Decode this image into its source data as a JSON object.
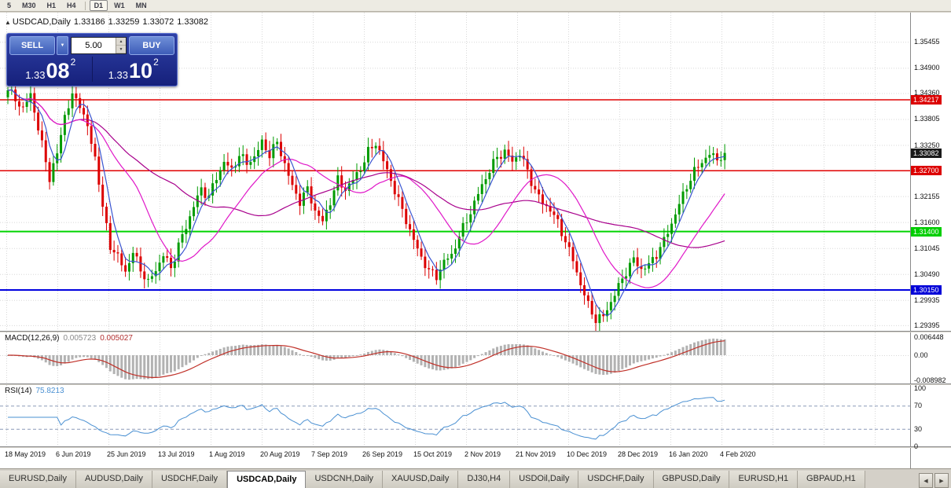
{
  "toolbar": {
    "periods": [
      "5",
      "M30",
      "H1",
      "H4",
      "D1",
      "W1",
      "MN"
    ],
    "active_period": "D1"
  },
  "icons": {
    "chart_marker": "▲",
    "sell_dropdown": "▼",
    "volume_up": "▲",
    "volume_down": "▼",
    "tab_scroll_left": "◀",
    "tab_scroll_right": "▶"
  },
  "chart": {
    "info": {
      "symbol_period": "USDCAD,Daily",
      "open": "1.33186",
      "high": "1.33259",
      "low": "1.33072",
      "close": "1.33082"
    },
    "trade_panel": {
      "sell_label": "SELL",
      "buy_label": "BUY",
      "volume": "5.00",
      "sell_price_small": "1.33",
      "sell_price_big": "08",
      "sell_price_sup": "2",
      "buy_price_small": "1.33",
      "buy_price_big": "10",
      "buy_price_sup": "2"
    },
    "price_axis": {
      "labels": [
        {
          "text": "1.35455",
          "value": 1.35455
        },
        {
          "text": "1.34900",
          "value": 1.349
        },
        {
          "text": "1.34360",
          "value": 1.3436
        },
        {
          "text": "1.33805",
          "value": 1.33805
        },
        {
          "text": "1.33250",
          "value": 1.3325
        },
        {
          "text": "1.32155",
          "value": 1.32155
        },
        {
          "text": "1.31600",
          "value": 1.316
        },
        {
          "text": "1.31045",
          "value": 1.31045
        },
        {
          "text": "1.30490",
          "value": 1.3049
        },
        {
          "text": "1.29935",
          "value": 1.29935
        },
        {
          "text": "1.29395",
          "value": 1.29395
        }
      ],
      "badges": [
        {
          "text": "1.34217",
          "value": 1.34217,
          "color": "#dc0000",
          "text_color": "#ffffff"
        },
        {
          "text": "1.33082",
          "value": 1.33082,
          "color": "#1a1a1a",
          "text_color": "#ffffff"
        },
        {
          "text": "1.32700",
          "value": 1.327,
          "color": "#dc0000",
          "text_color": "#ffffff"
        },
        {
          "text": "1.31400",
          "value": 1.314,
          "color": "#00ce00",
          "text_color": "#ffffff"
        },
        {
          "text": "1.30150",
          "value": 1.3015,
          "color": "#0000d8",
          "text_color": "#ffffff"
        }
      ]
    },
    "hlines": [
      {
        "value": 1.34217,
        "color": "#e00000",
        "width": 1.5
      },
      {
        "value": 1.327,
        "color": "#e00000",
        "width": 1.5
      },
      {
        "value": 1.314,
        "color": "#00d400",
        "width": 2
      },
      {
        "value": 1.3015,
        "color": "#0000e0",
        "width": 2
      }
    ],
    "date_axis": [
      "18 May 2019",
      "6 Jun 2019",
      "25 Jun 2019",
      "13 Jul 2019",
      "1 Aug 2019",
      "20 Aug 2019",
      "7 Sep 2019",
      "26 Sep 2019",
      "15 Oct 2019",
      "2 Nov 2019",
      "21 Nov 2019",
      "10 Dec 2019",
      "28 Dec 2019",
      "16 Jan 2020",
      "4 Feb 2020"
    ]
  },
  "macd": {
    "label": "MACD(12,26,9)",
    "value_main": "0.005723",
    "value_signal": "0.005027",
    "axis_labels": [
      {
        "text": "0.006448",
        "value": 0.006448
      },
      {
        "text": "0.00",
        "value": 0
      },
      {
        "text": "-0.008982",
        "value": -0.008982
      }
    ]
  },
  "rsi": {
    "label": "RSI(14)",
    "value": "75.8213",
    "levels": [
      70,
      30
    ],
    "axis_labels": [
      {
        "text": "100",
        "value": 100
      },
      {
        "text": "70",
        "value": 70
      },
      {
        "text": "30",
        "value": 30
      },
      {
        "text": "0",
        "value": 0
      }
    ]
  },
  "tabs": {
    "items": [
      "EURUSD,Daily",
      "AUDUSD,Daily",
      "USDCHF,Daily",
      "USDCAD,Daily",
      "USDCNH,Daily",
      "XAUUSD,Daily",
      "DJ30,H4",
      "USDOil,Daily",
      "USDCHF,Daily",
      "GBPUSD,Daily",
      "EURUSD,H1",
      "GBPAUD,H1"
    ],
    "active": "USDCAD,Daily"
  },
  "chart_data": {
    "type": "candlestick",
    "symbol": "USDCAD",
    "timeframe": "Daily",
    "last_ohlc": {
      "open": 1.33186,
      "high": 1.33259,
      "low": 1.33072,
      "close": 1.33082
    },
    "bid": 1.33082,
    "ask": 1.33102,
    "candle_count": 190,
    "price_range_visible": [
      1.29,
      1.358
    ],
    "close_anchors": [
      [
        0,
        1.3442
      ],
      [
        2,
        1.3425
      ],
      [
        4,
        1.34
      ],
      [
        6,
        1.3435
      ],
      [
        8,
        1.336
      ],
      [
        10,
        1.329
      ],
      [
        11,
        1.3255
      ],
      [
        13,
        1.3305
      ],
      [
        15,
        1.339
      ],
      [
        17,
        1.3428
      ],
      [
        19,
        1.3415
      ],
      [
        21,
        1.336
      ],
      [
        23,
        1.33
      ],
      [
        25,
        1.319
      ],
      [
        27,
        1.311
      ],
      [
        29,
        1.3085
      ],
      [
        31,
        1.3055
      ],
      [
        33,
        1.3095
      ],
      [
        35,
        1.306
      ],
      [
        37,
        1.303
      ],
      [
        39,
        1.3058
      ],
      [
        41,
        1.309
      ],
      [
        43,
        1.3062
      ],
      [
        45,
        1.311
      ],
      [
        47,
        1.315
      ],
      [
        49,
        1.3195
      ],
      [
        51,
        1.323
      ],
      [
        53,
        1.3215
      ],
      [
        55,
        1.3255
      ],
      [
        57,
        1.329
      ],
      [
        59,
        1.327
      ],
      [
        61,
        1.3305
      ],
      [
        63,
        1.3285
      ],
      [
        65,
        1.33
      ],
      [
        67,
        1.333
      ],
      [
        69,
        1.3305
      ],
      [
        71,
        1.333
      ],
      [
        73,
        1.3285
      ],
      [
        75,
        1.3235
      ],
      [
        77,
        1.3205
      ],
      [
        79,
        1.323
      ],
      [
        81,
        1.3185
      ],
      [
        83,
        1.316
      ],
      [
        85,
        1.3205
      ],
      [
        87,
        1.325
      ],
      [
        89,
        1.323
      ],
      [
        91,
        1.325
      ],
      [
        93,
        1.3275
      ],
      [
        95,
        1.331
      ],
      [
        97,
        1.333
      ],
      [
        99,
        1.329
      ],
      [
        101,
        1.325
      ],
      [
        103,
        1.3205
      ],
      [
        105,
        1.3165
      ],
      [
        107,
        1.312
      ],
      [
        109,
        1.3085
      ],
      [
        111,
        1.3055
      ],
      [
        113,
        1.3045
      ],
      [
        115,
        1.3075
      ],
      [
        117,
        1.309
      ],
      [
        119,
        1.313
      ],
      [
        121,
        1.3165
      ],
      [
        123,
        1.32
      ],
      [
        125,
        1.324
      ],
      [
        127,
        1.327
      ],
      [
        129,
        1.33
      ],
      [
        131,
        1.331
      ],
      [
        133,
        1.329
      ],
      [
        135,
        1.3308
      ],
      [
        137,
        1.3268
      ],
      [
        139,
        1.3228
      ],
      [
        141,
        1.32
      ],
      [
        143,
        1.3188
      ],
      [
        145,
        1.3158
      ],
      [
        147,
        1.312
      ],
      [
        149,
        1.3078
      ],
      [
        151,
        1.3028
      ],
      [
        153,
        1.2982
      ],
      [
        155,
        1.2952
      ],
      [
        157,
        1.2958
      ],
      [
        159,
        1.299
      ],
      [
        161,
        1.3022
      ],
      [
        163,
        1.3055
      ],
      [
        165,
        1.308
      ],
      [
        167,
        1.306
      ],
      [
        169,
        1.3068
      ],
      [
        171,
        1.3092
      ],
      [
        173,
        1.312
      ],
      [
        175,
        1.3158
      ],
      [
        177,
        1.3198
      ],
      [
        179,
        1.3238
      ],
      [
        181,
        1.3268
      ],
      [
        183,
        1.329
      ],
      [
        185,
        1.3305
      ],
      [
        187,
        1.3295
      ],
      [
        189,
        1.3308
      ]
    ],
    "wiggle": {
      "amp": 0.0011,
      "freq": 1.9
    },
    "ma_periods": {
      "fast": 5,
      "mid": 20,
      "slow": 45
    },
    "macd_params": {
      "fast": 12,
      "slow": 26,
      "signal": 9
    },
    "rsi_period": 14,
    "colors": {
      "up": "#009b00",
      "down": "#dc0000",
      "ma_fast": "#3a55d0",
      "ma_mid": "#e018c8",
      "ma_slow": "#a8008c",
      "macd_hist": "#b2b2b2",
      "macd_signal": "#c03028",
      "rsi_line": "#4a90d2",
      "grid": "#d8d8d8"
    }
  }
}
